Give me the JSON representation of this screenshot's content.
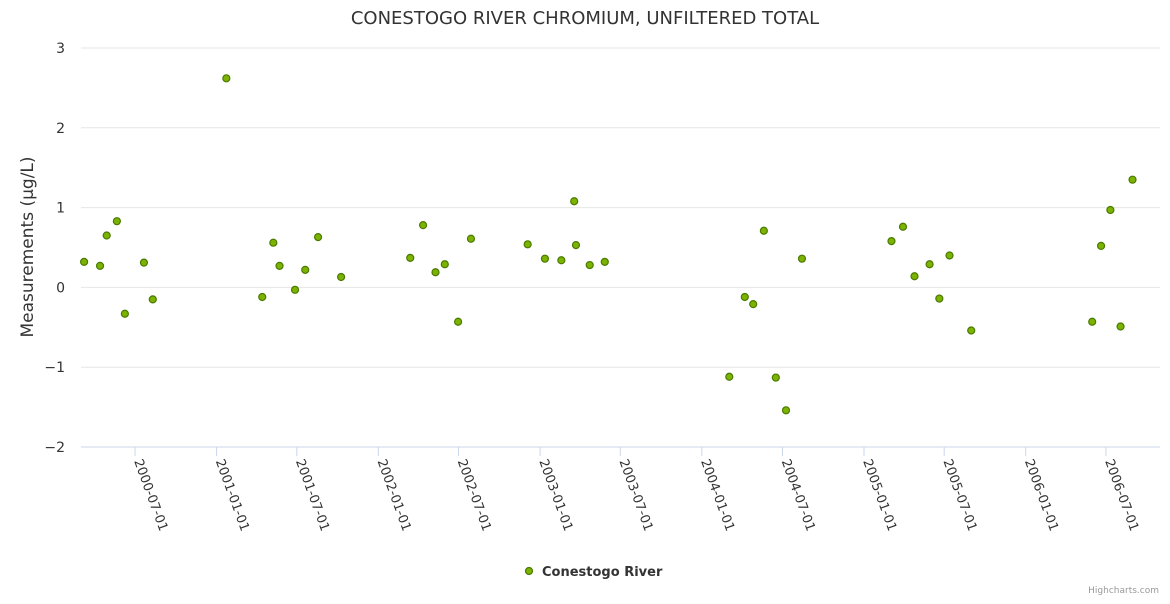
{
  "chart_data": {
    "type": "scatter",
    "title": "CONESTOGO RIVER CHROMIUM, UNFILTERED TOTAL",
    "ylabel": "Measurements (μg/L)",
    "xlabel": "",
    "ylim": [
      -2,
      3
    ],
    "yticks": [
      "−2",
      "−1",
      "0",
      "1",
      "2",
      "3"
    ],
    "ytick_values": [
      -2,
      -1,
      0,
      1,
      2,
      3
    ],
    "xlim": [
      "2000-03-01",
      "2006-10-31"
    ],
    "xtick_labels": [
      "2000-07-01",
      "2001-01-01",
      "2001-07-01",
      "2002-01-01",
      "2002-07-01",
      "2003-01-01",
      "2003-07-01",
      "2004-01-01",
      "2004-07-01",
      "2005-01-01",
      "2005-07-01",
      "2006-01-01",
      "2006-07-01"
    ],
    "grid": "horizontal",
    "legend_position": "bottom-center",
    "series": [
      {
        "name": "Conestogo River",
        "color": "#7cb300",
        "points": [
          [
            "2000-03-08",
            0.32
          ],
          [
            "2000-04-13",
            0.27
          ],
          [
            "2000-04-28",
            0.65
          ],
          [
            "2000-05-21",
            0.83
          ],
          [
            "2000-06-08",
            -0.33
          ],
          [
            "2000-07-21",
            0.31
          ],
          [
            "2000-08-10",
            -0.15
          ],
          [
            "2001-01-23",
            2.62
          ],
          [
            "2001-04-14",
            -0.12
          ],
          [
            "2001-05-09",
            0.56
          ],
          [
            "2001-05-23",
            0.27
          ],
          [
            "2001-06-27",
            -0.03
          ],
          [
            "2001-07-20",
            0.22
          ],
          [
            "2001-08-18",
            0.63
          ],
          [
            "2001-10-09",
            0.13
          ],
          [
            "2002-03-14",
            0.37
          ],
          [
            "2002-04-12",
            0.78
          ],
          [
            "2002-05-10",
            0.19
          ],
          [
            "2002-05-31",
            0.29
          ],
          [
            "2002-06-30",
            -0.43
          ],
          [
            "2002-07-29",
            0.61
          ],
          [
            "2002-12-04",
            0.54
          ],
          [
            "2003-01-12",
            0.36
          ],
          [
            "2003-02-18",
            0.34
          ],
          [
            "2003-03-19",
            1.08
          ],
          [
            "2003-03-23",
            0.53
          ],
          [
            "2003-04-23",
            0.28
          ],
          [
            "2003-05-27",
            0.32
          ],
          [
            "2004-03-03",
            -1.12
          ],
          [
            "2004-04-07",
            -0.12
          ],
          [
            "2004-04-26",
            -0.21
          ],
          [
            "2004-05-20",
            0.71
          ],
          [
            "2004-06-16",
            -1.13
          ],
          [
            "2004-07-09",
            -1.54
          ],
          [
            "2004-08-14",
            0.36
          ],
          [
            "2005-03-04",
            0.58
          ],
          [
            "2005-03-30",
            0.76
          ],
          [
            "2005-04-25",
            0.14
          ],
          [
            "2005-05-29",
            0.29
          ],
          [
            "2005-06-20",
            -0.14
          ],
          [
            "2005-07-13",
            0.4
          ],
          [
            "2005-08-31",
            -0.54
          ],
          [
            "2006-05-31",
            -0.43
          ],
          [
            "2006-06-20",
            0.52
          ],
          [
            "2006-07-11",
            0.97
          ],
          [
            "2006-08-03",
            -0.49
          ],
          [
            "2006-08-30",
            1.35
          ]
        ]
      }
    ],
    "credits": "Highcharts.com"
  }
}
